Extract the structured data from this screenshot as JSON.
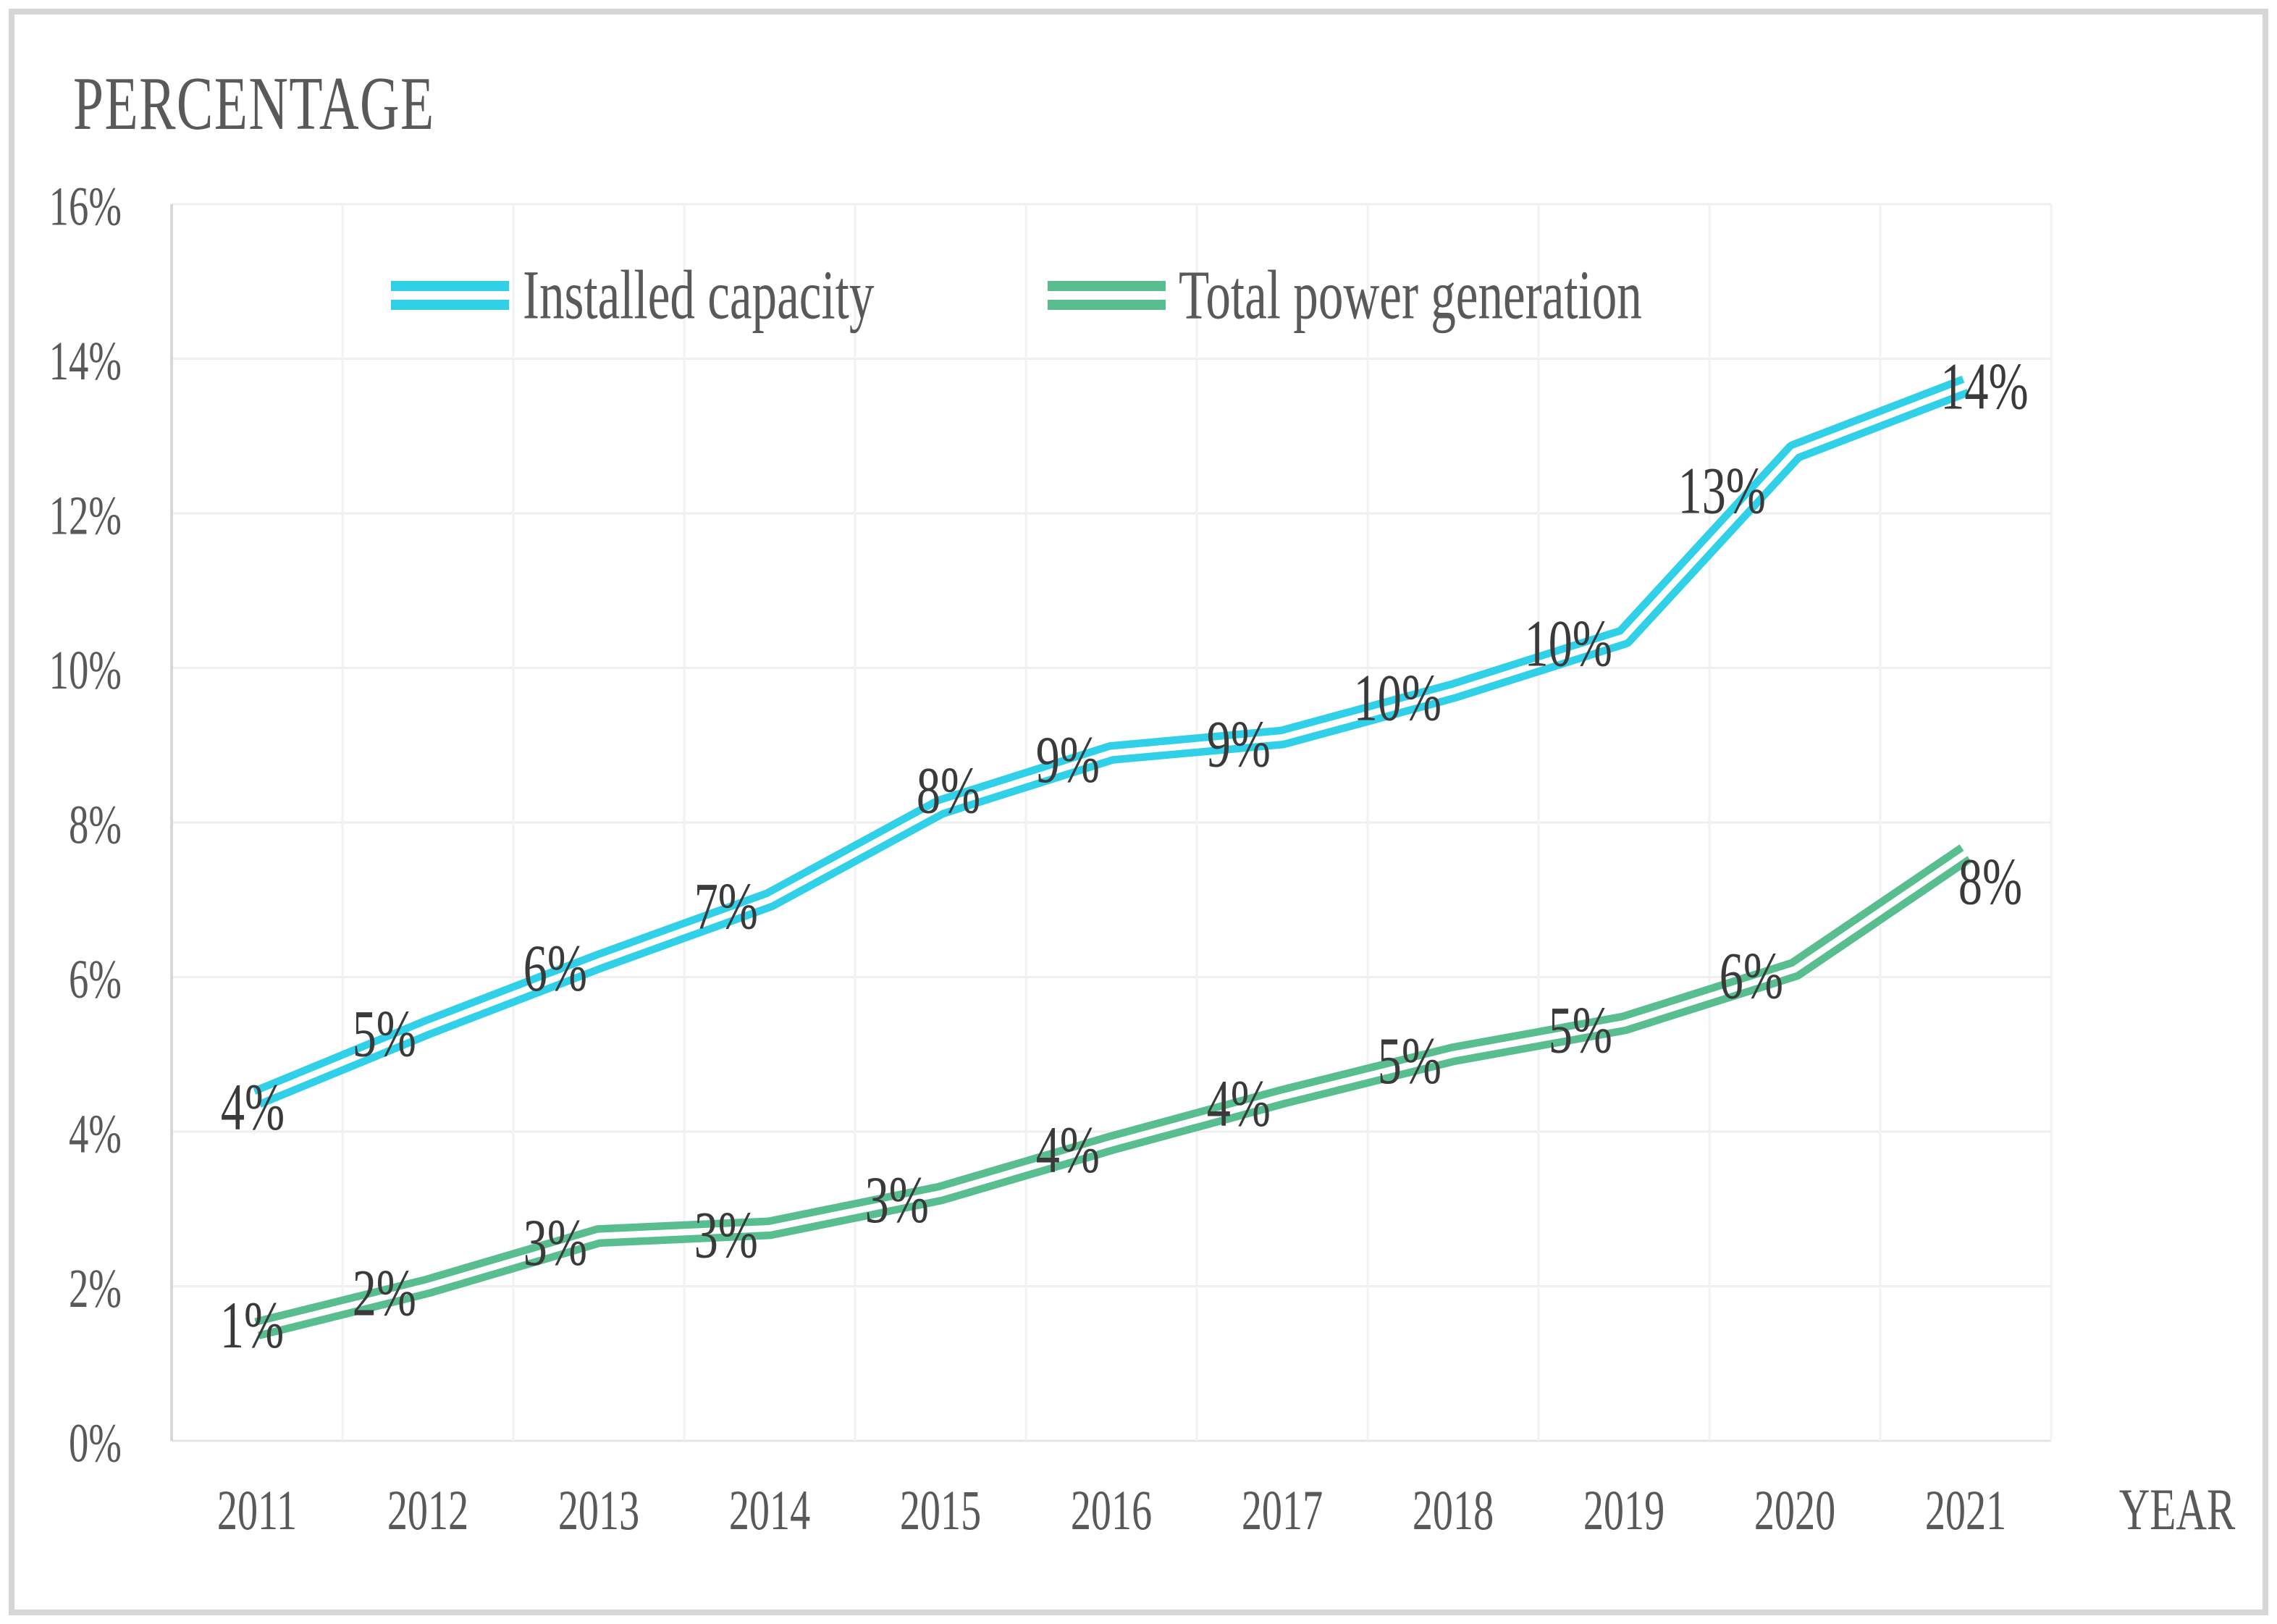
{
  "figure": {
    "title": "PERCENTAGE",
    "xlabel": "YEAR"
  },
  "legend": {
    "items": [
      {
        "label": "Installed capacity"
      },
      {
        "label": "Total power generation"
      }
    ]
  },
  "colors": {
    "tick_text": "#595959",
    "title_text": "#595959",
    "label_text": "#3a3a3a",
    "gridline": "#efefef",
    "gridline_v": "#f2f2f2",
    "axis_left": "#d8d8d8",
    "axis_bottom": "#e5e5e5",
    "border": "#d6d6d6"
  },
  "chart_data": {
    "type": "line",
    "title": "PERCENTAGE",
    "xlabel": "YEAR",
    "ylabel": "",
    "ylim": [
      0,
      16
    ],
    "ytick_step": 2,
    "grid": true,
    "legend_position": "top-inside",
    "categories": [
      "2011",
      "2012",
      "2013",
      "2014",
      "2015",
      "2016",
      "2017",
      "2018",
      "2019",
      "2020",
      "2021"
    ],
    "yticks": [
      {
        "label": "0%",
        "value": 0
      },
      {
        "label": "2%",
        "value": 2
      },
      {
        "label": "4%",
        "value": 4
      },
      {
        "label": "6%",
        "value": 6
      },
      {
        "label": "8%",
        "value": 8
      },
      {
        "label": "10%",
        "value": 10
      },
      {
        "label": "12%",
        "value": 12
      },
      {
        "label": "14%",
        "value": 14
      },
      {
        "label": "16%",
        "value": 16
      }
    ],
    "series": [
      {
        "name": "Installed capacity",
        "color": "#2fd0e8",
        "values": [
          4.44,
          5.35,
          6.2,
          7.0,
          8.2,
          8.9,
          9.1,
          9.7,
          10.4,
          12.8,
          13.65
        ],
        "point_labels": [
          "4%",
          "5%",
          "6%",
          "7%",
          "8%",
          "9%",
          "9%",
          "10%",
          "10%",
          "13%",
          "14%"
        ]
      },
      {
        "name": "Total power generation",
        "color": "#58be90",
        "values": [
          1.45,
          2.0,
          2.65,
          2.75,
          3.2,
          3.85,
          4.45,
          5.0,
          5.4,
          6.1,
          7.6
        ],
        "point_labels": [
          "1%",
          "2%",
          "3%",
          "3%",
          "3%",
          "4%",
          "4%",
          "5%",
          "5%",
          "6%",
          "8%"
        ]
      }
    ]
  }
}
